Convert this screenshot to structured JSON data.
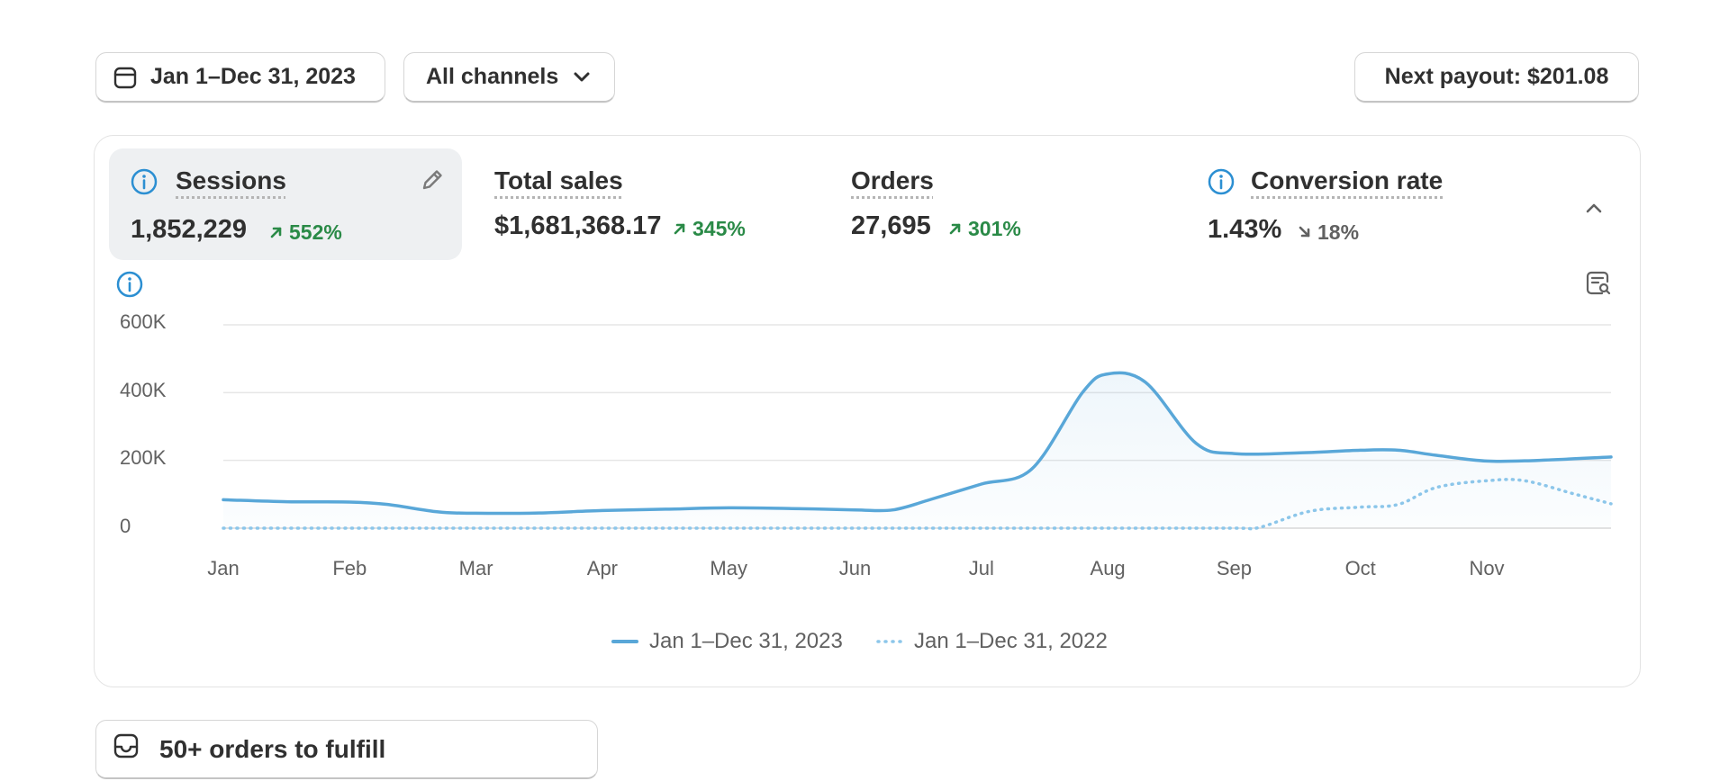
{
  "toolbar": {
    "date_range": "Jan 1–Dec 31, 2023",
    "channel": "All channels",
    "payout": "Next payout: $201.08"
  },
  "metrics": [
    {
      "title": "Sessions",
      "value": "1,852,229",
      "delta": "552%",
      "direction": "up",
      "active": true
    },
    {
      "title": "Total sales",
      "value": "$1,681,368.17",
      "delta": "345%",
      "direction": "up",
      "active": false
    },
    {
      "title": "Orders",
      "value": "27,695",
      "delta": "301%",
      "direction": "up",
      "active": false
    },
    {
      "title": "Conversion rate",
      "value": "1.43%",
      "delta": "18%",
      "direction": "down",
      "active": false
    }
  ],
  "chart_data": {
    "type": "line",
    "y_ticks": [
      "600K",
      "400K",
      "200K",
      "0"
    ],
    "x_ticks": [
      "Jan",
      "Feb",
      "Mar",
      "Apr",
      "May",
      "Jun",
      "Jul",
      "Aug",
      "Sep",
      "Oct",
      "Nov"
    ],
    "ylim": [
      0,
      600000
    ],
    "grid": true,
    "legend_position": "bottom",
    "series": [
      {
        "name": "Jan 1–Dec 31, 2023",
        "style": "solid",
        "color": "#59a7d8",
        "points": [
          [
            0,
            84000
          ],
          [
            0.5,
            78000
          ],
          [
            1,
            77000
          ],
          [
            1.3,
            70000
          ],
          [
            1.7,
            48000
          ],
          [
            2,
            44000
          ],
          [
            2.5,
            45000
          ],
          [
            3,
            52000
          ],
          [
            3.5,
            56000
          ],
          [
            4,
            60000
          ],
          [
            4.5,
            58000
          ],
          [
            5,
            54000
          ],
          [
            5.3,
            54000
          ],
          [
            5.6,
            85000
          ],
          [
            6,
            130000
          ],
          [
            6.4,
            175000
          ],
          [
            6.8,
            400000
          ],
          [
            7,
            455000
          ],
          [
            7.3,
            430000
          ],
          [
            7.7,
            250000
          ],
          [
            8,
            220000
          ],
          [
            8.5,
            222000
          ],
          [
            9,
            230000
          ],
          [
            9.3,
            230000
          ],
          [
            9.6,
            215000
          ],
          [
            10,
            198000
          ],
          [
            10.4,
            200000
          ],
          [
            11,
            210000
          ]
        ]
      },
      {
        "name": "Jan 1–Dec 31, 2022",
        "style": "dotted",
        "color": "#8cc6ea",
        "points": [
          [
            0,
            0
          ],
          [
            7,
            0
          ],
          [
            8,
            0
          ],
          [
            8.2,
            2000
          ],
          [
            8.6,
            50000
          ],
          [
            9,
            62000
          ],
          [
            9.3,
            70000
          ],
          [
            9.6,
            120000
          ],
          [
            10,
            140000
          ],
          [
            10.3,
            140000
          ],
          [
            10.7,
            100000
          ],
          [
            11,
            72000
          ]
        ]
      }
    ]
  },
  "fulfill": {
    "label": "50+ orders to fulfill"
  },
  "colors": {
    "accent_blue": "#2c8fd2",
    "positive": "#2a8a47",
    "line": "#59a7d8",
    "line_prev": "#8cc6ea"
  }
}
